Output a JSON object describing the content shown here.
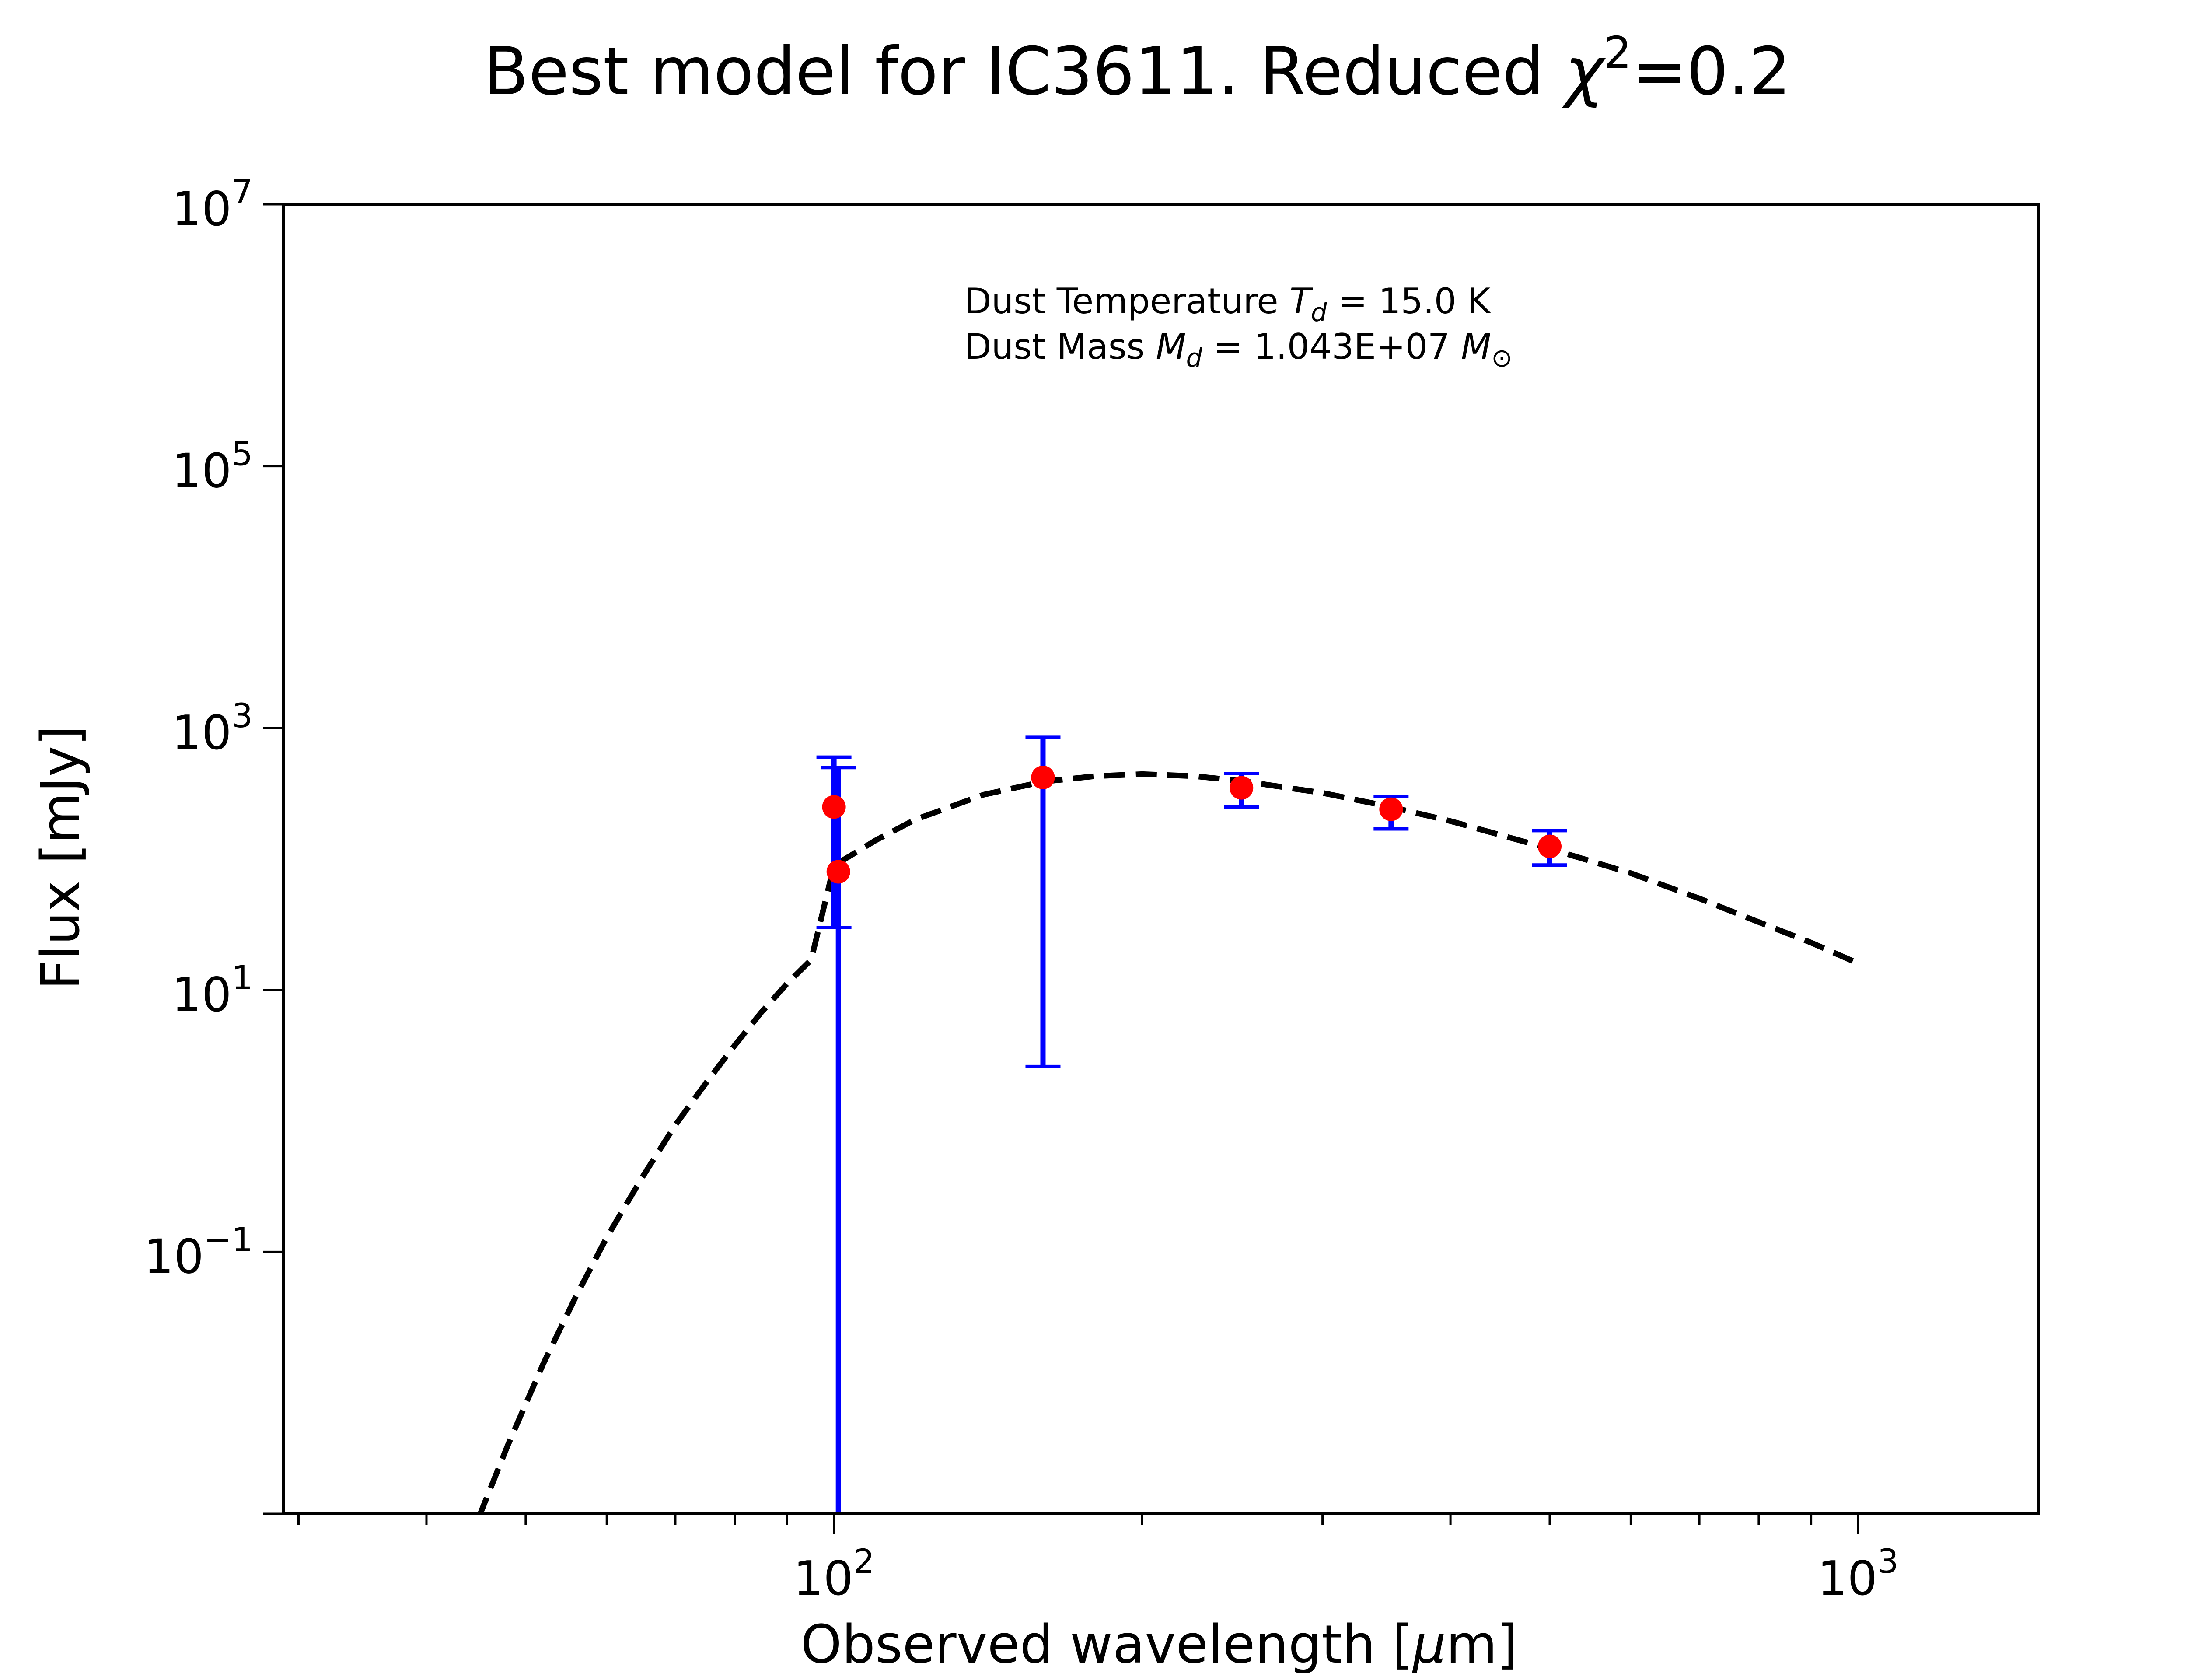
{
  "chart_data": {
    "type": "scatter",
    "title": {
      "text": "Best model for IC3611. Reduced ",
      "symbol": "χ",
      "superscript": "2",
      "suffix": "=0.2"
    },
    "xlabel": {
      "text": "Observed wavelength [",
      "symbol": "μ",
      "suffix": "m]"
    },
    "ylabel": "Flux [mJy]",
    "xscale": "log",
    "yscale": "log",
    "xlim": [
      29,
      1500
    ],
    "ylim": [
      0.001,
      10000000
    ],
    "x_ticks": [
      {
        "value": 100,
        "base": "10",
        "exp": "2"
      },
      {
        "value": 1000,
        "base": "10",
        "exp": "3"
      }
    ],
    "y_ticks": [
      {
        "value": 0.1,
        "base": "10",
        "exp": "−1"
      },
      {
        "value": 10,
        "base": "10",
        "exp": "1"
      },
      {
        "value": 1000,
        "base": "10",
        "exp": "3"
      },
      {
        "value": 100000,
        "base": "10",
        "exp": "5"
      },
      {
        "value": 10000000,
        "base": "10",
        "exp": "7"
      }
    ],
    "annotations": [
      {
        "prefix": "Dust Temperature ",
        "sym": "T",
        "sub": "d",
        "suffix": " = 15.0 K"
      },
      {
        "prefix": "Dust Mass ",
        "sym": "M",
        "sub": "d",
        "suffix": " = 1.043E+07 ",
        "sym2": "M",
        "sub2": "⊙"
      }
    ],
    "observations": {
      "color": "#ff0000",
      "errorbar_color": "#0000ff",
      "points": [
        {
          "x": 100,
          "y": 250,
          "ylow": 30,
          "yhigh": 600
        },
        {
          "x": 101,
          "y": 80,
          "ylow": 0.001,
          "yhigh": 500
        },
        {
          "x": 160,
          "y": 420,
          "ylow": 2.6,
          "yhigh": 850
        },
        {
          "x": 250,
          "y": 350,
          "ylow": 250,
          "yhigh": 450
        },
        {
          "x": 350,
          "y": 240,
          "ylow": 170,
          "yhigh": 300
        },
        {
          "x": 500,
          "y": 125,
          "ylow": 90,
          "yhigh": 165
        }
      ]
    },
    "model": {
      "style": "dashed",
      "color": "#000000",
      "x_range": [
        45,
        1000
      ],
      "points": [
        [
          45,
          0.00094
        ],
        [
          48,
          0.0033
        ],
        [
          52,
          0.0139
        ],
        [
          56,
          0.046
        ],
        [
          60,
          0.129
        ],
        [
          65,
          0.372
        ],
        [
          70,
          0.93
        ],
        [
          75,
          1.95
        ],
        [
          80,
          3.78
        ],
        [
          85,
          6.8
        ],
        [
          90,
          11.2
        ],
        [
          95,
          17.0
        ],
        [
          100,
          89
        ],
        [
          110,
          140
        ],
        [
          120,
          200
        ],
        [
          140,
          310
        ],
        [
          160,
          390
        ],
        [
          180,
          430
        ],
        [
          200,
          445
        ],
        [
          225,
          430
        ],
        [
          250,
          395
        ],
        [
          300,
          320
        ],
        [
          350,
          250
        ],
        [
          400,
          195
        ],
        [
          500,
          120
        ],
        [
          600,
          78
        ],
        [
          700,
          50
        ],
        [
          800,
          33
        ],
        [
          900,
          23
        ],
        [
          1000,
          16
        ]
      ]
    }
  }
}
